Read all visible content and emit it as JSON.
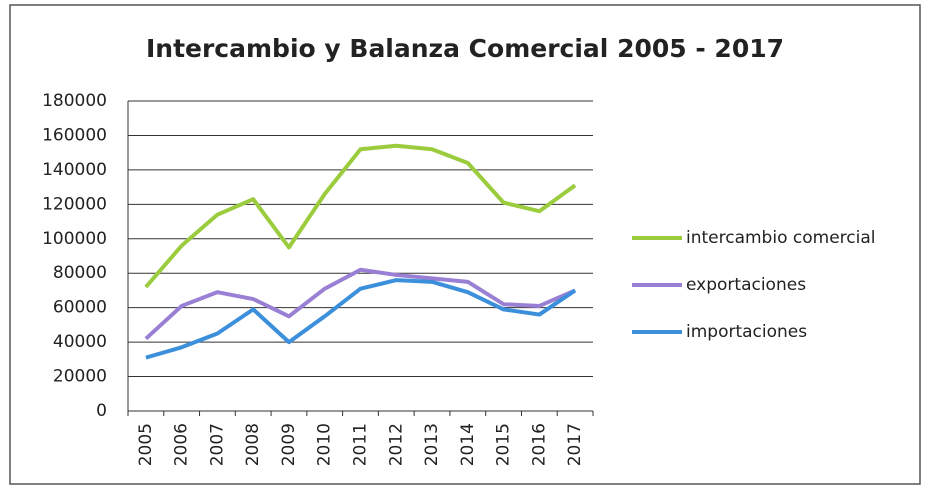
{
  "chart_data": {
    "type": "line",
    "title": "Intercambio y Balanza Comercial  2005 - 2017",
    "categories": [
      "2005",
      "2006",
      "2007",
      "2008",
      "2009",
      "2010",
      "2011",
      "2012",
      "2013",
      "2014",
      "2015",
      "2016",
      "2017"
    ],
    "series": [
      {
        "name": "intercambio comercial",
        "color": "#9bcc3e",
        "values": [
          72000,
          96000,
          114000,
          123000,
          95000,
          126000,
          152000,
          154000,
          152000,
          144000,
          121000,
          116000,
          131000
        ]
      },
      {
        "name": "exportaciones",
        "color": "#9a80d4",
        "values": [
          42000,
          61000,
          69000,
          65000,
          55000,
          71000,
          82000,
          79000,
          77000,
          75000,
          62000,
          61000,
          70000
        ]
      },
      {
        "name": "importaciones",
        "color": "#3b8fdb",
        "values": [
          31000,
          37000,
          45000,
          59000,
          40000,
          55000,
          71000,
          76000,
          75000,
          69000,
          59000,
          56000,
          70000
        ]
      }
    ],
    "ylim": [
      0,
      180000
    ],
    "yticks": [
      0,
      20000,
      40000,
      60000,
      80000,
      100000,
      120000,
      140000,
      160000,
      180000
    ],
    "grid": true,
    "legend": "right"
  }
}
